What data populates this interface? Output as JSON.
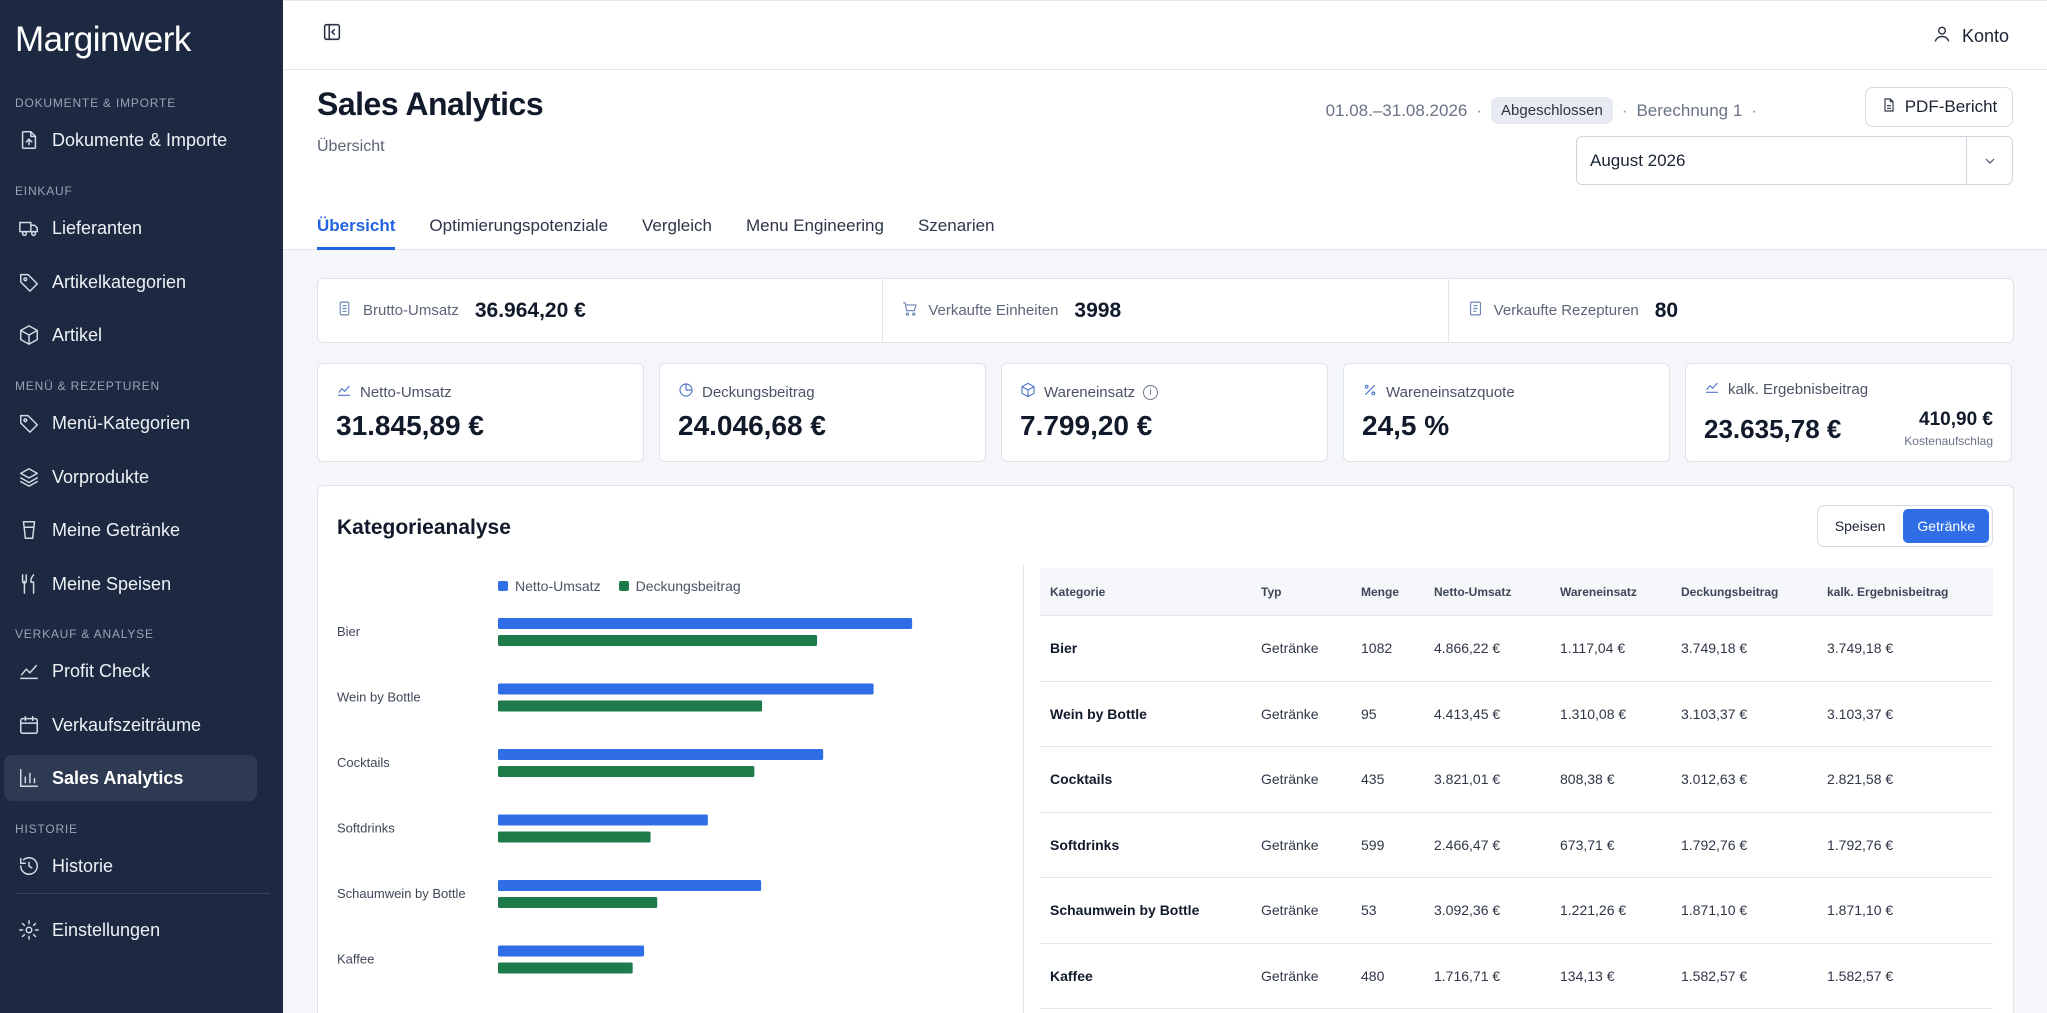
{
  "brand": {
    "part1": "Margin",
    "part2": "werk"
  },
  "sidebar": {
    "sections": [
      {
        "label": "DOKUMENTE & IMPORTE"
      },
      {
        "label": "EINKAUF"
      },
      {
        "label": "MENÜ & REZEPTUREN"
      },
      {
        "label": "VERKAUF & ANALYSE"
      },
      {
        "label": "HISTORIE"
      }
    ],
    "items": [
      {
        "label": "Dokumente & Importe",
        "icon": "file-import-icon"
      },
      {
        "label": "Lieferanten",
        "icon": "truck-icon"
      },
      {
        "label": "Artikelkategorien",
        "icon": "tag-icon"
      },
      {
        "label": "Artikel",
        "icon": "box-icon"
      },
      {
        "label": "Menü-Kategorien",
        "icon": "tag-icon"
      },
      {
        "label": "Vorprodukte",
        "icon": "layers-icon"
      },
      {
        "label": "Meine Getränke",
        "icon": "cup-icon"
      },
      {
        "label": "Meine Speisen",
        "icon": "utensils-icon"
      },
      {
        "label": "Profit Check",
        "icon": "trend-icon"
      },
      {
        "label": "Verkaufszeiträume",
        "icon": "calendar-icon"
      },
      {
        "label": "Sales Analytics",
        "icon": "bar-chart-icon"
      },
      {
        "label": "Historie",
        "icon": "history-icon"
      },
      {
        "label": "Einstellungen",
        "icon": "gear-icon"
      }
    ]
  },
  "topbar": {
    "account_label": "Konto"
  },
  "header": {
    "title": "Sales Analytics",
    "subtitle": "Übersicht",
    "date_range": "01.08.–31.08.2026",
    "status_badge": "Abgeschlossen",
    "calculation": "Berechnung 1",
    "sep": "·",
    "pdf_label": "PDF-Bericht",
    "month_value": "August 2026"
  },
  "tabs": [
    "Übersicht",
    "Optimierungspotenziale",
    "Vergleich",
    "Menu Engineering",
    "Szenarien"
  ],
  "stats": [
    {
      "label": "Brutto-Umsatz",
      "value": "36.964,20 €"
    },
    {
      "label": "Verkaufte Einheiten",
      "value": "3998"
    },
    {
      "label": "Verkaufte Rezepturen",
      "value": "80"
    }
  ],
  "kpis": [
    {
      "label": "Netto-Umsatz",
      "value": "31.845,89 €"
    },
    {
      "label": "Deckungsbeitrag",
      "value": "24.046,68 €"
    },
    {
      "label": "Wareneinsatz",
      "value": "7.799,20 €",
      "info": "i"
    },
    {
      "label": "Wareneinsatzquote",
      "value": "24,5 %"
    },
    {
      "label": "kalk. Ergebnisbeitrag",
      "value": "23.635,78 €",
      "side_value": "410,90 €",
      "side_label": "Kostenaufschlag"
    }
  ],
  "category": {
    "title": "Kategorieanalyse",
    "toggle": [
      "Speisen",
      "Getränke"
    ],
    "table_headers": [
      "Kategorie",
      "Typ",
      "Menge",
      "Netto-Umsatz",
      "Wareneinsatz",
      "Deckungsbeitrag",
      "kalk. Ergebnisbeitrag"
    ],
    "rows": [
      [
        "Bier",
        "Getränke",
        "1082",
        "4.866,22 €",
        "1.117,04 €",
        "3.749,18 €",
        "3.749,18 €"
      ],
      [
        "Wein by Bottle",
        "Getränke",
        "95",
        "4.413,45 €",
        "1.310,08 €",
        "3.103,37 €",
        "3.103,37 €"
      ],
      [
        "Cocktails",
        "Getränke",
        "435",
        "3.821,01 €",
        "808,38 €",
        "3.012,63 €",
        "2.821,58 €"
      ],
      [
        "Softdrinks",
        "Getränke",
        "599",
        "2.466,47 €",
        "673,71 €",
        "1.792,76 €",
        "1.792,76 €"
      ],
      [
        "Schaumwein by Bottle",
        "Getränke",
        "53",
        "3.092,36 €",
        "1.221,26 €",
        "1.871,10 €",
        "1.871,10 €"
      ],
      [
        "Kaffee",
        "Getränke",
        "480",
        "1.716,71 €",
        "134,13 €",
        "1.582,57 €",
        "1.582,57 €"
      ]
    ]
  },
  "colors": {
    "accent": "#2f6ee6",
    "netto": "#2f6ee6",
    "deckung": "#1f7a4a",
    "sidebar": "#1c2941"
  },
  "chart_data": {
    "type": "bar",
    "orientation": "horizontal",
    "categories": [
      "Bier",
      "Wein by Bottle",
      "Cocktails",
      "Softdrinks",
      "Schaumwein by Bottle",
      "Kaffee"
    ],
    "series": [
      {
        "name": "Netto-Umsatz",
        "values": [
          4866.22,
          4413.45,
          3821.01,
          2466.47,
          3092.36,
          1716.71
        ],
        "color": "#2f6ee6"
      },
      {
        "name": "Deckungsbeitrag",
        "values": [
          3749.18,
          3103.37,
          3012.63,
          1792.76,
          1871.1,
          1582.57
        ],
        "color": "#1f7a4a"
      }
    ],
    "legend": "top",
    "grid": false
  }
}
